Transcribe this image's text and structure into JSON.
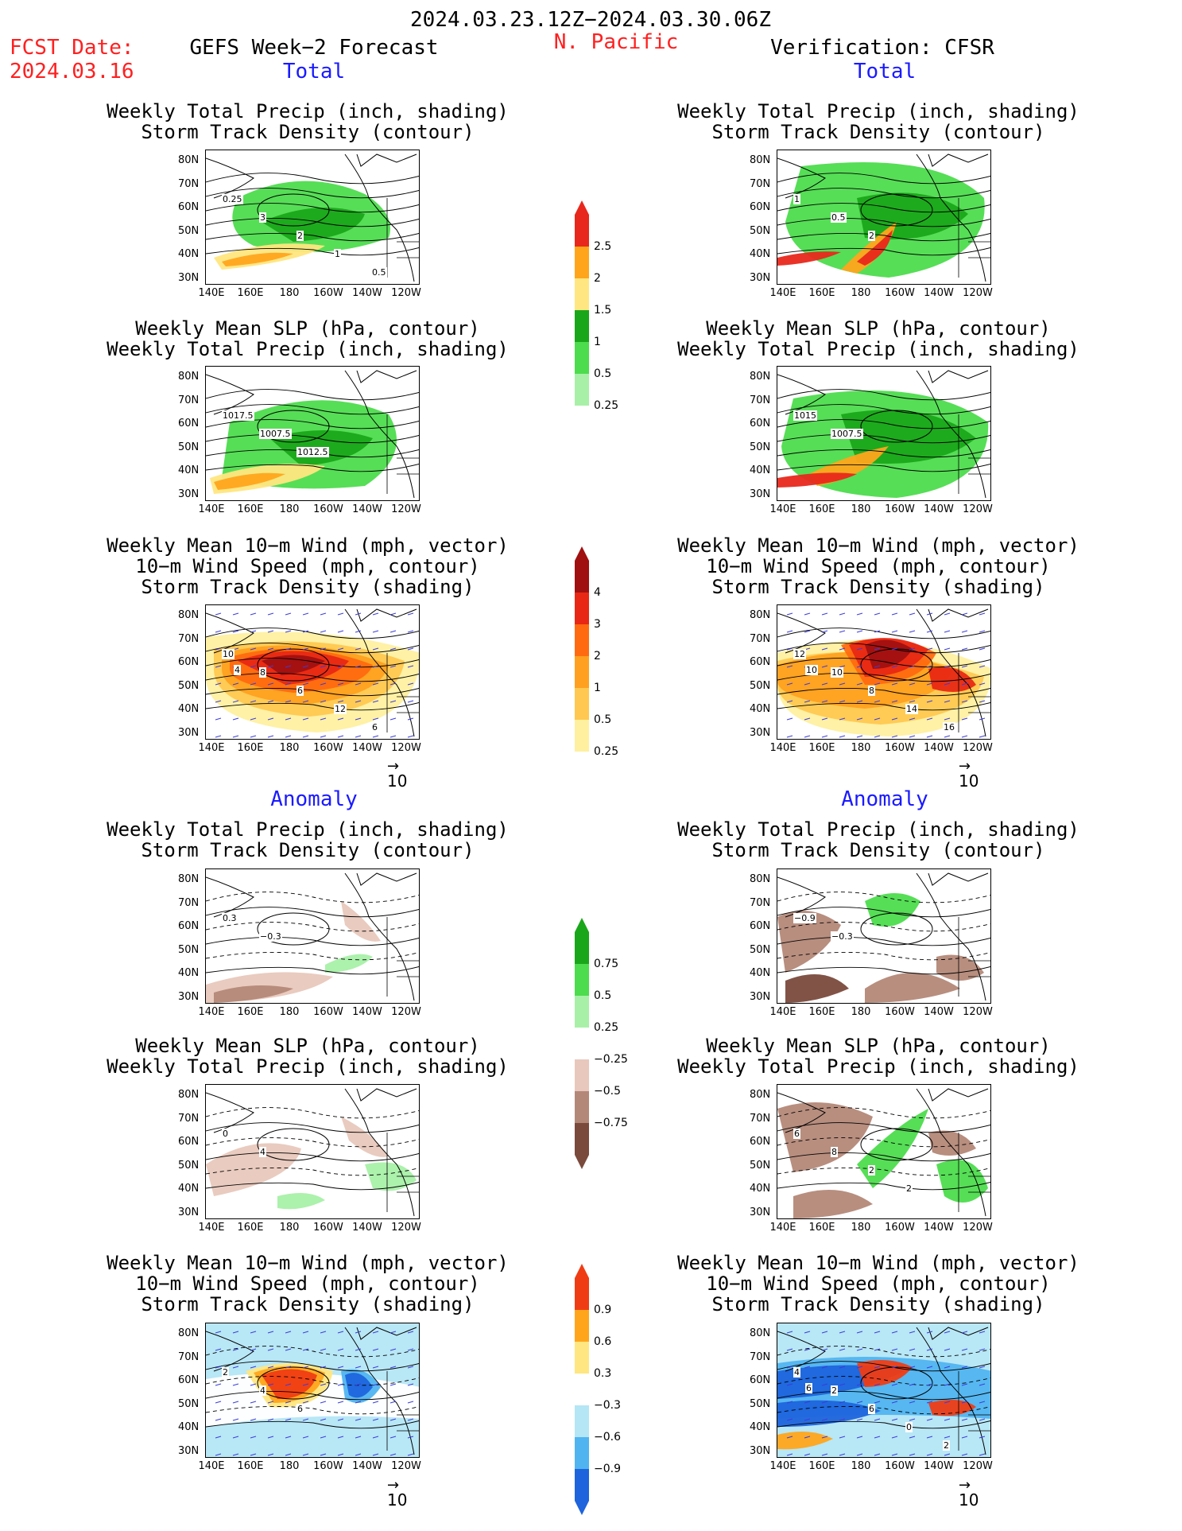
{
  "header": {
    "date_range": "2024.03.23.12Z−2024.03.30.06Z",
    "fcst_label": "FCST Date:",
    "fcst_date": "2024.03.16",
    "forecast_label": "GEFS Week−2 Forecast",
    "region": "N. Pacific",
    "verification_label": "Verification: CFSR"
  },
  "sections": {
    "total": "Total",
    "anomaly": "Anomaly"
  },
  "panel_titles": {
    "precip_storm": [
      "Weekly Total Precip (inch, shading)",
      "Storm Track Density (contour)"
    ],
    "slp_precip": [
      "Weekly Mean SLP (hPa, contour)",
      "Weekly Total Precip (inch, shading)"
    ],
    "wind_storm": [
      "Weekly Mean 10−m Wind (mph, vector)",
      "10−m Wind Speed (mph, contour)",
      "Storm Track Density (shading)"
    ]
  },
  "axes": {
    "y_ticks": [
      "80N",
      "70N",
      "60N",
      "50N",
      "40N",
      "30N"
    ],
    "x_ticks": [
      "140E",
      "160E",
      "180",
      "160W",
      "140W",
      "120W"
    ]
  },
  "vector_ref": "10",
  "colorbars": {
    "precip_total": {
      "labels": [
        "2.5",
        "2",
        "1.5",
        "1",
        "0.5",
        "0.25"
      ],
      "colors": [
        "#e8281c",
        "#ffa51c",
        "#ffe680",
        "#1aa61a",
        "#4ddc4d",
        "#a8f0a8"
      ]
    },
    "storm_total": {
      "labels": [
        "4",
        "3",
        "2",
        "1",
        "0.5",
        "0.25"
      ],
      "colors": [
        "#a01010",
        "#e82814",
        "#ff6a10",
        "#ffa020",
        "#ffc850",
        "#fff0a0"
      ]
    },
    "precip_anom": {
      "labels": [
        "0.75",
        "0.5",
        "0.25",
        "−0.25",
        "−0.5",
        "−0.75"
      ],
      "colors": [
        "#1aa61a",
        "#4ddc4d",
        "#a8f0a8",
        "#e8c8bc",
        "#b48878",
        "#7a4a3c"
      ]
    },
    "storm_anom": {
      "labels": [
        "0.9",
        "0.6",
        "0.3",
        "−0.3",
        "−0.6",
        "−0.9"
      ],
      "colors": [
        "#f03c14",
        "#ffa51c",
        "#ffe680",
        "#b4e6f5",
        "#50b4f0",
        "#1e64dc"
      ]
    }
  },
  "contour_labels": {
    "r1_left": [
      "0.25",
      "3",
      "2",
      "1",
      "0.5"
    ],
    "r1_right": [
      "1",
      "0.5",
      "2"
    ],
    "r2_left": [
      "1017.5",
      "1007.5",
      "1012.5"
    ],
    "r2_right": [
      "1015",
      "1007.5"
    ],
    "r3_left": [
      "10",
      "8",
      "6",
      "12",
      "6",
      "4"
    ],
    "r3_right": [
      "12",
      "10",
      "8",
      "14",
      "16",
      "10"
    ],
    "r4_left": [
      "0.3",
      "−0.3"
    ],
    "r4_right": [
      "−0.9",
      "−0.3"
    ],
    "r5_left": [
      "0",
      "4"
    ],
    "r5_right": [
      "6",
      "8",
      "2",
      "2"
    ],
    "r6_left": [
      "2",
      "4",
      "6"
    ],
    "r6_right": [
      "4",
      "2",
      "6",
      "0",
      "2",
      "6"
    ]
  }
}
